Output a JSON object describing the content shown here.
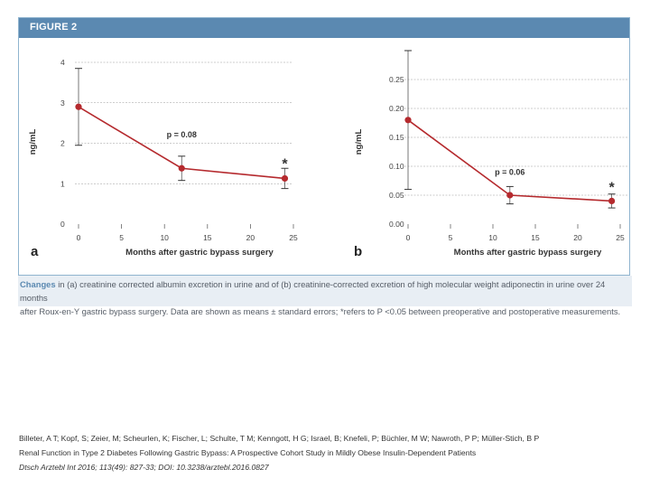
{
  "figure": {
    "title": "FIGURE 2"
  },
  "chart_data": [
    {
      "type": "line",
      "panel_label": "a",
      "xlabel": "Months after gastric bypass surgery",
      "ylabel": "ng/mL",
      "xlim": [
        0,
        25
      ],
      "ylim": [
        0,
        4
      ],
      "xticks": [
        "0",
        "5",
        "10",
        "15",
        "20",
        "25"
      ],
      "yticks": [
        "0",
        "1",
        "2",
        "3",
        "4"
      ],
      "grid": "horizontal",
      "series": [
        {
          "x": [
            0,
            12,
            24
          ],
          "y": [
            2.9,
            1.38,
            1.13
          ],
          "err": [
            0.95,
            0.3,
            0.25
          ]
        }
      ],
      "annotations": [
        {
          "text": "p = 0.08",
          "x": 12,
          "y": 2.15
        },
        {
          "text": "*",
          "x": 24,
          "y": 1.55
        }
      ],
      "line_color": "#b52a2e"
    },
    {
      "type": "line",
      "panel_label": "b",
      "xlabel": "Months after gastric bypass surgery",
      "ylabel": "ng/mL",
      "xlim": [
        0,
        25
      ],
      "ylim": [
        0,
        0.25
      ],
      "xticks": [
        "0",
        "5",
        "10",
        "15",
        "20",
        "25"
      ],
      "yticks": [
        "0.00",
        "0.05",
        "0.10",
        "0.15",
        "0.20",
        "0.25"
      ],
      "grid": "horizontal",
      "series": [
        {
          "x": [
            0,
            12,
            24
          ],
          "y": [
            0.18,
            0.05,
            0.04
          ],
          "err": [
            0.12,
            0.015,
            0.012
          ]
        }
      ],
      "annotations": [
        {
          "text": "p = 0.06",
          "x": 12,
          "y": 0.085
        },
        {
          "text": "*",
          "x": 24,
          "y": 0.068
        }
      ],
      "line_color": "#b52a2e"
    }
  ],
  "caption": {
    "lead": "Changes",
    "line1": " in (a) creatinine corrected albumin excretion in urine and of (b) creatinine-corrected excretion of high molecular weight adiponectin in urine over 24 months",
    "line2": "after Roux-en-Y gastric bypass surgery. Data are shown as means ± standard errors; *refers to P <0.05 between preoperative and postoperative measurements."
  },
  "citation": {
    "authors": "Billeter, A T; Kopf, S; Zeier, M; Scheurlen, K; Fischer, L; Schulte, T M; Kenngott, H G; Israel, B; Knefeli, P; Büchler, M W; Nawroth, P P; Müller-Stich, B P",
    "title": "Renal Function in Type 2 Diabetes Following Gastric Bypass: A Prospective Cohort Study in Mildly Obese Insulin-Dependent Patients",
    "journal": "Dtsch Arztebl Int 2016; 113(49): 827-33; DOI: 10.3238/arztebl.2016.0827"
  }
}
